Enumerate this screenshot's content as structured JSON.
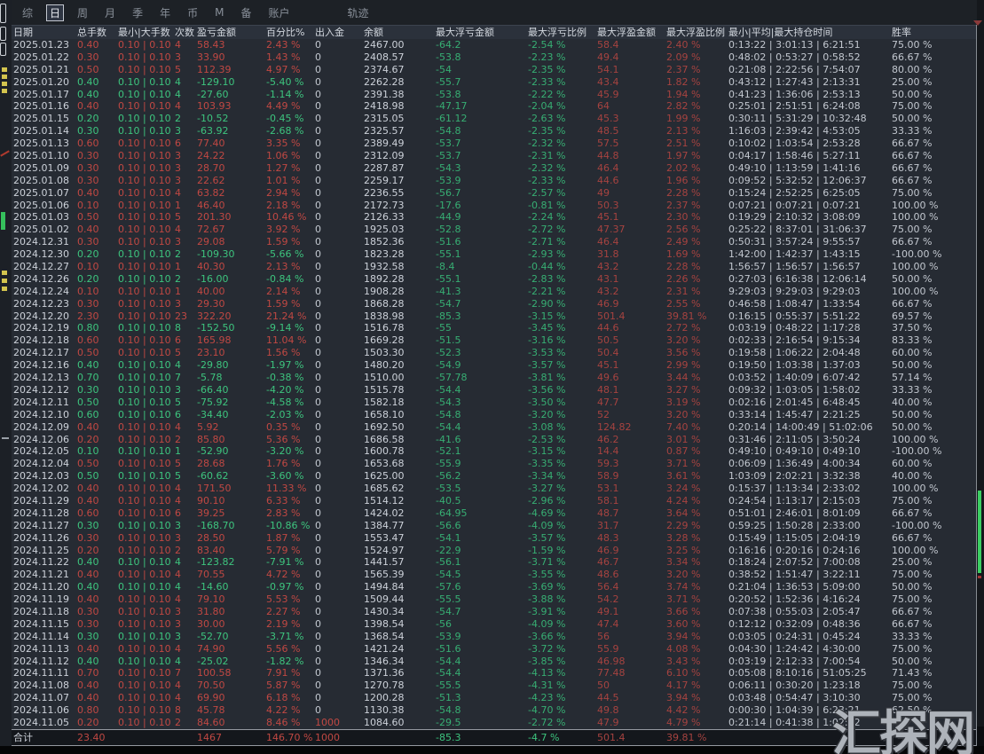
{
  "menubar": {
    "items": [
      "综",
      "日",
      "周",
      "月",
      "季",
      "年",
      "币",
      "M",
      "备",
      "账户"
    ],
    "selected": "日",
    "trail_label": "轨迹"
  },
  "table": {
    "columns": [
      "日期",
      "总手数",
      "最小|大手数",
      "次数",
      "盈亏金额",
      "百分比%",
      "出入金",
      "余额",
      "最大浮亏金额",
      "最大浮亏比例",
      "最大浮盈金额",
      "最大浮盈比例",
      "最小|平均|最大持仓时间",
      "胜率"
    ],
    "rows": [
      [
        "2025.01.23",
        "0.40",
        "0.10 | 0.10",
        "4",
        "58.43",
        "2.43 %",
        "0",
        "2467.00",
        "-64.2",
        "-2.54 %",
        "58.4",
        "2.40 %",
        "0:13:22 | 3:01:13 | 6:21:51",
        "75.00 %",
        "p"
      ],
      [
        "2025.01.22",
        "0.30",
        "0.10 | 0.10",
        "3",
        "33.90",
        "1.43 %",
        "0",
        "2408.57",
        "-53.8",
        "-2.23 %",
        "49.4",
        "2.09 %",
        "0:48:02 | 0:53:27 | 0:58:52",
        "66.67 %",
        "p"
      ],
      [
        "2025.01.21",
        "0.50",
        "0.10 | 0.10",
        "5",
        "112.39",
        "4.97 %",
        "0",
        "2374.67",
        "-54",
        "-2.35 %",
        "54.1",
        "2.37 %",
        "0:21:08 | 2:22:56 | 7:54:07",
        "80.00 %",
        "p"
      ],
      [
        "2025.01.20",
        "0.40",
        "0.10 | 0.10",
        "4",
        "-129.10",
        "-5.40 %",
        "0",
        "2262.28",
        "-55.7",
        "-2.33 %",
        "43.4",
        "1.82 %",
        "0:43:12 | 1:27:43 | 2:13:31",
        "25.00 %",
        "l"
      ],
      [
        "2025.01.17",
        "0.40",
        "0.10 | 0.10",
        "4",
        "-27.60",
        "-1.14 %",
        "0",
        "2391.38",
        "-53.8",
        "-2.22 %",
        "45.9",
        "1.94 %",
        "0:41:23 | 1:36:06 | 2:53:13",
        "50.00 %",
        "l"
      ],
      [
        "2025.01.16",
        "0.40",
        "0.10 | 0.10",
        "4",
        "103.93",
        "4.49 %",
        "0",
        "2418.98",
        "-47.17",
        "-2.04 %",
        "64",
        "2.82 %",
        "0:25:01 | 2:51:51 | 6:24:08",
        "75.00 %",
        "p"
      ],
      [
        "2025.01.15",
        "0.20",
        "0.10 | 0.10",
        "2",
        "-10.52",
        "-0.45 %",
        "0",
        "2315.05",
        "-61.12",
        "-2.63 %",
        "45.3",
        "1.99 %",
        "0:30:11 | 5:31:29 | 10:32:48",
        "50.00 %",
        "l"
      ],
      [
        "2025.01.14",
        "0.30",
        "0.10 | 0.10",
        "3",
        "-63.92",
        "-2.68 %",
        "0",
        "2325.57",
        "-54.8",
        "-2.35 %",
        "48.5",
        "2.13 %",
        "1:16:03 | 2:39:42 | 4:53:05",
        "33.33 %",
        "l"
      ],
      [
        "2025.01.13",
        "0.60",
        "0.10 | 0.10",
        "6",
        "77.40",
        "3.35 %",
        "0",
        "2389.49",
        "-53.7",
        "-2.32 %",
        "57.5",
        "2.51 %",
        "0:10:02 | 1:03:54 | 2:53:28",
        "66.67 %",
        "p"
      ],
      [
        "2025.01.10",
        "0.30",
        "0.10 | 0.10",
        "3",
        "24.22",
        "1.06 %",
        "0",
        "2312.09",
        "-53.7",
        "-2.31 %",
        "44.8",
        "1.97 %",
        "0:04:17 | 1:58:46 | 5:27:11",
        "66.67 %",
        "p"
      ],
      [
        "2025.01.09",
        "0.30",
        "0.10 | 0.10",
        "3",
        "28.70",
        "1.27 %",
        "0",
        "2287.87",
        "-54.3",
        "-2.32 %",
        "46.4",
        "2.02 %",
        "0:49:10 | 1:13:59 | 1:41:16",
        "66.67 %",
        "p"
      ],
      [
        "2025.01.08",
        "0.30",
        "0.10 | 0.10",
        "3",
        "22.62",
        "1.01 %",
        "0",
        "2259.17",
        "-53.9",
        "-2.33 %",
        "44.6",
        "1.96 %",
        "0:09:52 | 5:32:52 | 12:06:37",
        "66.67 %",
        "p"
      ],
      [
        "2025.01.07",
        "0.40",
        "0.10 | 0.10",
        "4",
        "63.82",
        "2.94 %",
        "0",
        "2236.55",
        "-56.7",
        "-2.57 %",
        "49",
        "2.28 %",
        "0:15:24 | 2:52:25 | 6:25:05",
        "75.00 %",
        "p"
      ],
      [
        "2025.01.06",
        "0.10",
        "0.10 | 0.10",
        "1",
        "46.40",
        "2.18 %",
        "0",
        "2172.73",
        "-17.6",
        "-0.81 %",
        "50.3",
        "2.37 %",
        "0:07:21 | 0:07:21 | 0:07:21",
        "100.00 %",
        "p"
      ],
      [
        "2025.01.03",
        "0.50",
        "0.10 | 0.10",
        "5",
        "201.30",
        "10.46 %",
        "0",
        "2126.33",
        "-44.9",
        "-2.24 %",
        "45.1",
        "2.30 %",
        "0:19:29 | 2:10:32 | 3:08:09",
        "100.00 %",
        "p"
      ],
      [
        "2025.01.02",
        "0.40",
        "0.10 | 0.10",
        "4",
        "72.67",
        "3.92 %",
        "0",
        "1925.03",
        "-52.8",
        "-2.72 %",
        "47.37",
        "2.56 %",
        "0:25:22 | 8:37:01 | 31:06:37",
        "75.00 %",
        "p"
      ],
      [
        "2024.12.31",
        "0.30",
        "0.10 | 0.10",
        "3",
        "29.08",
        "1.59 %",
        "0",
        "1852.36",
        "-51.6",
        "-2.71 %",
        "46.4",
        "2.49 %",
        "0:50:31 | 3:57:24 | 9:55:57",
        "66.67 %",
        "p"
      ],
      [
        "2024.12.30",
        "0.20",
        "0.10 | 0.10",
        "2",
        "-109.30",
        "-5.66 %",
        "0",
        "1823.28",
        "-55.1",
        "-2.93 %",
        "31.8",
        "1.69 %",
        "1:42:00 | 1:42:37 | 1:43:15",
        "-100.00 %",
        "l"
      ],
      [
        "2024.12.27",
        "0.10",
        "0.10 | 0.10",
        "1",
        "40.30",
        "2.13 %",
        "0",
        "1932.58",
        "-8.4",
        "-0.44 %",
        "43.2",
        "2.28 %",
        "1:56:57 | 1:56:57 | 1:56:57",
        "100.00 %",
        "p"
      ],
      [
        "2024.12.26",
        "0.20",
        "0.10 | 0.10",
        "2",
        "-16.00",
        "-0.84 %",
        "0",
        "1892.28",
        "-55.1",
        "-2.83 %",
        "43.1",
        "2.26 %",
        "0:27:03 | 6:16:38 | 12:06:14",
        "50.00 %",
        "l"
      ],
      [
        "2024.12.24",
        "0.10",
        "0.10 | 0.10",
        "1",
        "40.00",
        "2.14 %",
        "0",
        "1908.28",
        "-41.3",
        "-2.21 %",
        "43.2",
        "2.31 %",
        "9:29:03 | 9:29:03 | 9:29:03",
        "100.00 %",
        "p"
      ],
      [
        "2024.12.23",
        "0.30",
        "0.10 | 0.10",
        "3",
        "29.30",
        "1.59 %",
        "0",
        "1868.28",
        "-54.7",
        "-2.90 %",
        "46.9",
        "2.55 %",
        "0:46:58 | 1:08:47 | 1:33:54",
        "66.67 %",
        "p"
      ],
      [
        "2024.12.20",
        "2.30",
        "0.10 | 0.10",
        "23",
        "322.20",
        "21.24 %",
        "0",
        "1838.98",
        "-85.3",
        "-3.15 %",
        "501.4",
        "39.81 %",
        "0:16:15 | 0:55:37 | 5:51:22",
        "69.57 %",
        "p"
      ],
      [
        "2024.12.19",
        "0.80",
        "0.10 | 0.10",
        "8",
        "-152.50",
        "-9.14 %",
        "0",
        "1516.78",
        "-55",
        "-3.45 %",
        "44.6",
        "2.72 %",
        "0:03:19 | 0:48:22 | 1:17:28",
        "37.50 %",
        "l"
      ],
      [
        "2024.12.18",
        "0.60",
        "0.10 | 0.10",
        "6",
        "165.98",
        "11.04 %",
        "0",
        "1669.28",
        "-51.5",
        "-3.16 %",
        "50.5",
        "3.20 %",
        "0:02:33 | 2:16:54 | 9:15:34",
        "83.33 %",
        "p"
      ],
      [
        "2024.12.17",
        "0.50",
        "0.10 | 0.10",
        "5",
        "23.10",
        "1.56 %",
        "0",
        "1503.30",
        "-52.3",
        "-3.53 %",
        "50.4",
        "3.56 %",
        "0:19:58 | 1:06:22 | 2:04:48",
        "60.00 %",
        "p"
      ],
      [
        "2024.12.16",
        "0.40",
        "0.10 | 0.10",
        "4",
        "-29.80",
        "-1.97 %",
        "0",
        "1480.20",
        "-54.9",
        "-3.57 %",
        "45.1",
        "2.99 %",
        "0:19:50 | 1:03:38 | 1:37:03",
        "50.00 %",
        "l"
      ],
      [
        "2024.12.13",
        "0.70",
        "0.10 | 0.10",
        "7",
        "-5.78",
        "-0.38 %",
        "0",
        "1510.00",
        "-57.78",
        "-3.81 %",
        "49.6",
        "3.44 %",
        "0:03:52 | 1:40:09 | 6:07:42",
        "57.14 %",
        "l"
      ],
      [
        "2024.12.12",
        "0.30",
        "0.10 | 0.10",
        "3",
        "-66.40",
        "-4.20 %",
        "0",
        "1515.78",
        "-54.4",
        "-3.56 %",
        "48.1",
        "3.27 %",
        "0:09:32 | 1:03:05 | 1:58:02",
        "33.33 %",
        "l"
      ],
      [
        "2024.12.11",
        "0.50",
        "0.10 | 0.10",
        "5",
        "-75.92",
        "-4.58 %",
        "0",
        "1582.18",
        "-54.3",
        "-3.50 %",
        "47.7",
        "3.19 %",
        "0:02:16 | 2:01:45 | 6:48:45",
        "40.00 %",
        "l"
      ],
      [
        "2024.12.10",
        "0.60",
        "0.10 | 0.10",
        "6",
        "-34.40",
        "-2.03 %",
        "0",
        "1658.10",
        "-54.8",
        "-3.20 %",
        "52",
        "3.20 %",
        "0:33:14 | 1:45:47 | 2:21:25",
        "50.00 %",
        "l"
      ],
      [
        "2024.12.09",
        "0.40",
        "0.10 | 0.10",
        "4",
        "5.92",
        "0.35 %",
        "0",
        "1692.50",
        "-54.4",
        "-3.08 %",
        "124.82",
        "7.40 %",
        "0:20:14 | 14:00:49 | 51:02:06",
        "50.00 %",
        "p"
      ],
      [
        "2024.12.06",
        "0.20",
        "0.10 | 0.10",
        "2",
        "85.80",
        "5.36 %",
        "0",
        "1686.58",
        "-41.6",
        "-2.53 %",
        "46.2",
        "3.01 %",
        "0:31:46 | 2:11:05 | 3:50:24",
        "100.00 %",
        "p"
      ],
      [
        "2024.12.05",
        "0.10",
        "0.10 | 0.10",
        "1",
        "-52.90",
        "-3.20 %",
        "0",
        "1600.78",
        "-52.1",
        "-3.15 %",
        "14.4",
        "0.87 %",
        "0:49:10 | 0:49:10 | 0:49:10",
        "-100.00 %",
        "l"
      ],
      [
        "2024.12.04",
        "0.50",
        "0.10 | 0.10",
        "5",
        "28.68",
        "1.76 %",
        "0",
        "1653.68",
        "-55.9",
        "-3.35 %",
        "59.3",
        "3.71 %",
        "0:06:09 | 1:36:49 | 4:00:34",
        "60.00 %",
        "p"
      ],
      [
        "2024.12.03",
        "0.50",
        "0.10 | 0.10",
        "5",
        "-60.62",
        "-3.60 %",
        "0",
        "1625.00",
        "-56.2",
        "-3.34 %",
        "58.9",
        "3.61 %",
        "1:03:09 | 2:02:21 | 3:32:38",
        "40.00 %",
        "l"
      ],
      [
        "2024.12.02",
        "0.40",
        "0.10 | 0.10",
        "4",
        "171.50",
        "11.33 %",
        "0",
        "1685.62",
        "-53.5",
        "-3.27 %",
        "53.1",
        "3.24 %",
        "0:15:37 | 1:13:34 | 2:33:02",
        "100.00 %",
        "p"
      ],
      [
        "2024.11.29",
        "0.40",
        "0.10 | 0.10",
        "4",
        "90.10",
        "6.33 %",
        "0",
        "1514.12",
        "-40.5",
        "-2.96 %",
        "58.1",
        "4.24 %",
        "0:24:54 | 1:13:17 | 2:15:03",
        "75.00 %",
        "p"
      ],
      [
        "2024.11.28",
        "0.60",
        "0.10 | 0.10",
        "6",
        "39.25",
        "2.83 %",
        "0",
        "1424.02",
        "-64.95",
        "-4.69 %",
        "48.7",
        "3.64 %",
        "0:51:01 | 2:46:01 | 8:01:09",
        "66.67 %",
        "p"
      ],
      [
        "2024.11.27",
        "0.30",
        "0.10 | 0.10",
        "3",
        "-168.70",
        "-10.86 %",
        "0",
        "1384.77",
        "-56.6",
        "-4.09 %",
        "31.7",
        "2.29 %",
        "0:59:25 | 1:50:28 | 2:33:00",
        "-100.00 %",
        "l"
      ],
      [
        "2024.11.26",
        "0.30",
        "0.10 | 0.10",
        "3",
        "28.50",
        "1.87 %",
        "0",
        "1553.47",
        "-54.1",
        "-3.57 %",
        "48.3",
        "3.28 %",
        "0:15:49 | 1:15:05 | 2:04:19",
        "66.67 %",
        "p"
      ],
      [
        "2024.11.25",
        "0.20",
        "0.10 | 0.10",
        "2",
        "83.40",
        "5.79 %",
        "0",
        "1524.97",
        "-22.9",
        "-1.59 %",
        "46.9",
        "3.25 %",
        "0:16:16 | 0:20:16 | 0:24:16",
        "100.00 %",
        "p"
      ],
      [
        "2024.11.22",
        "0.40",
        "0.10 | 0.10",
        "4",
        "-123.82",
        "-7.91 %",
        "0",
        "1441.57",
        "-56.1",
        "-3.71 %",
        "46.7",
        "3.34 %",
        "0:18:24 | 2:07:52 | 7:00:08",
        "25.00 %",
        "l"
      ],
      [
        "2024.11.21",
        "0.40",
        "0.10 | 0.10",
        "4",
        "70.55",
        "4.72 %",
        "0",
        "1565.39",
        "-54.5",
        "-3.55 %",
        "48.6",
        "3.20 %",
        "0:38:52 | 1:51:47 | 3:22:11",
        "75.00 %",
        "p"
      ],
      [
        "2024.11.20",
        "0.40",
        "0.10 | 0.10",
        "4",
        "-14.60",
        "-0.97 %",
        "0",
        "1494.84",
        "-57.6",
        "-3.69 %",
        "56.4",
        "3.74 %",
        "0:21:04 | 1:36:53 | 5:09:00",
        "50.00 %",
        "l"
      ],
      [
        "2024.11.19",
        "0.40",
        "0.10 | 0.10",
        "4",
        "79.10",
        "5.53 %",
        "0",
        "1509.44",
        "-55.5",
        "-3.88 %",
        "54.2",
        "3.71 %",
        "0:20:52 | 1:52:36 | 4:16:24",
        "75.00 %",
        "p"
      ],
      [
        "2024.11.18",
        "0.30",
        "0.10 | 0.10",
        "3",
        "31.80",
        "2.27 %",
        "0",
        "1430.34",
        "-54.7",
        "-3.91 %",
        "49.1",
        "3.66 %",
        "0:07:38 | 0:55:03 | 2:05:47",
        "66.67 %",
        "p"
      ],
      [
        "2024.11.15",
        "0.30",
        "0.10 | 0.10",
        "3",
        "30.00",
        "2.19 %",
        "0",
        "1398.54",
        "-56",
        "-4.09 %",
        "47.4",
        "3.60 %",
        "0:12:12 | 0:32:09 | 0:48:36",
        "66.67 %",
        "p"
      ],
      [
        "2024.11.14",
        "0.30",
        "0.10 | 0.10",
        "3",
        "-52.70",
        "-3.71 %",
        "0",
        "1368.54",
        "-53.9",
        "-3.66 %",
        "56",
        "3.94 %",
        "0:03:05 | 0:24:31 | 0:45:24",
        "33.33 %",
        "l"
      ],
      [
        "2024.11.13",
        "0.40",
        "0.10 | 0.10",
        "4",
        "74.90",
        "5.56 %",
        "0",
        "1421.24",
        "-51.6",
        "-3.72 %",
        "55.9",
        "4.08 %",
        "0:04:30 | 1:24:42 | 4:30:00",
        "75.00 %",
        "p"
      ],
      [
        "2024.11.12",
        "0.40",
        "0.10 | 0.10",
        "4",
        "-25.02",
        "-1.82 %",
        "0",
        "1346.34",
        "-54.4",
        "-3.85 %",
        "46.98",
        "3.43 %",
        "0:03:19 | 2:12:33 | 7:00:54",
        "50.00 %",
        "l"
      ],
      [
        "2024.11.11",
        "0.70",
        "0.10 | 0.10",
        "7",
        "100.58",
        "7.91 %",
        "0",
        "1371.36",
        "-54.4",
        "-4.13 %",
        "77.48",
        "6.10 %",
        "0:05:08 | 8:10:16 | 51:05:25",
        "71.43 %",
        "p"
      ],
      [
        "2024.11.08",
        "0.40",
        "0.10 | 0.10",
        "4",
        "70.50",
        "5.87 %",
        "0",
        "1270.78",
        "-55.5",
        "-4.31 %",
        "50",
        "4.17 %",
        "0:06:11 | 0:30:20 | 1:23:18",
        "75.00 %",
        "p"
      ],
      [
        "2024.11.07",
        "0.40",
        "0.10 | 0.10",
        "4",
        "69.90",
        "6.18 %",
        "0",
        "1200.28",
        "-51.3",
        "-4.23 %",
        "44.5",
        "3.94 %",
        "0:03:48 | 0:54:47 | 3:10:30",
        "75.00 %",
        "p"
      ],
      [
        "2024.11.06",
        "0.80",
        "0.10 | 0.10",
        "8",
        "45.78",
        "4.22 %",
        "0",
        "1130.38",
        "-54.8",
        "-4.70 %",
        "49.8",
        "4.42 %",
        "0:00:30 | 1:04:39 | 6:23:21",
        "62.50 %",
        "p"
      ],
      [
        "2024.11.05",
        "0.20",
        "0.10 | 0.10",
        "2",
        "84.60",
        "8.46 %",
        "1000",
        "1084.60",
        "-29.5",
        "-2.72 %",
        "47.9",
        "4.79 %",
        "0:21:14 | 0:41:38 | 1:02:02",
        "",
        "p"
      ]
    ],
    "total": [
      "合计",
      "23.40",
      "",
      "",
      "1467",
      "146.70 %",
      "1000",
      "",
      "-85.3",
      "-4.7 %",
      "501.4",
      "39.81 %",
      "",
      ""
    ]
  },
  "watermark": "汇探网",
  "colors": {
    "background": "#262b33",
    "topbar": "#1d2126",
    "header_bg": "#2b313b",
    "profit_red": "#c04843",
    "loss_green": "#3dc47e",
    "float_loss_green": "#37ae73",
    "float_profit_red": "#a64340",
    "text_light": "#ccd1d9"
  }
}
